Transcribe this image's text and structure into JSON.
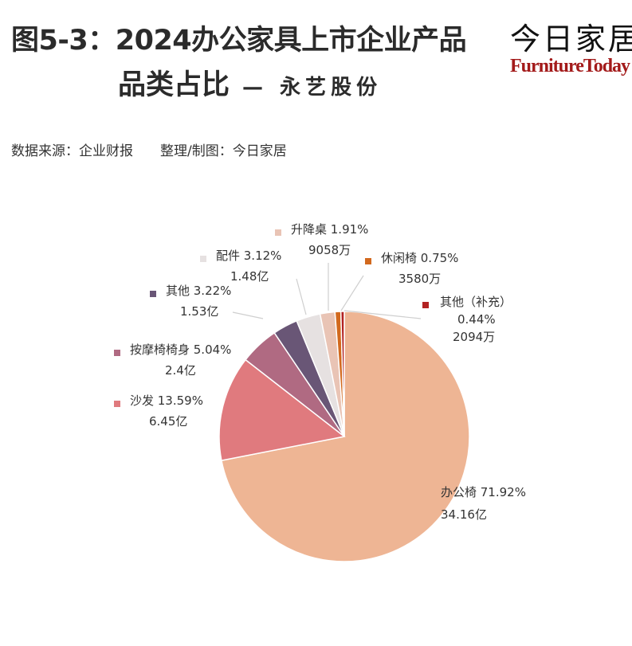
{
  "header": {
    "title_line1": "图5-3：2024办公家具上市企业产品",
    "title_line2": "品类占比",
    "title_company": "— 永艺股份",
    "logo_cn": "今日家居",
    "logo_en": "FurnitureToday"
  },
  "source": {
    "data_source": "数据来源：企业财报",
    "compiled_by": "整理/制图：今日家居"
  },
  "chart_data": {
    "type": "pie",
    "title": "图5-3：2024办公家具上市企业产品品类占比 — 永艺股份",
    "slices": [
      {
        "name": "办公椅",
        "percent": 71.92,
        "percent_label": "71.92%",
        "amount": "34.16亿",
        "color": "#eeb594"
      },
      {
        "name": "沙发",
        "percent": 13.59,
        "percent_label": "13.59%",
        "amount": "6.45亿",
        "color": "#e07a7e"
      },
      {
        "name": "按摩椅椅身",
        "percent": 5.04,
        "percent_label": "5.04%",
        "amount": "2.4亿",
        "color": "#b06a82"
      },
      {
        "name": "其他",
        "percent": 3.22,
        "percent_label": "3.22%",
        "amount": "1.53亿",
        "color": "#695676"
      },
      {
        "name": "配件",
        "percent": 3.12,
        "percent_label": "3.12%",
        "amount": "1.48亿",
        "color": "#e6e1e1"
      },
      {
        "name": "升降桌",
        "percent": 1.91,
        "percent_label": "1.91%",
        "amount": "9058万",
        "color": "#e9c4b5"
      },
      {
        "name": "休闲椅",
        "percent": 0.75,
        "percent_label": "0.75%",
        "amount": "3580万",
        "color": "#d2691e"
      },
      {
        "name": "其他（补充）",
        "percent": 0.44,
        "percent_label": "0.44%",
        "amount": "2094万",
        "color": "#b22222"
      }
    ],
    "label_format": "name percent / amount"
  }
}
